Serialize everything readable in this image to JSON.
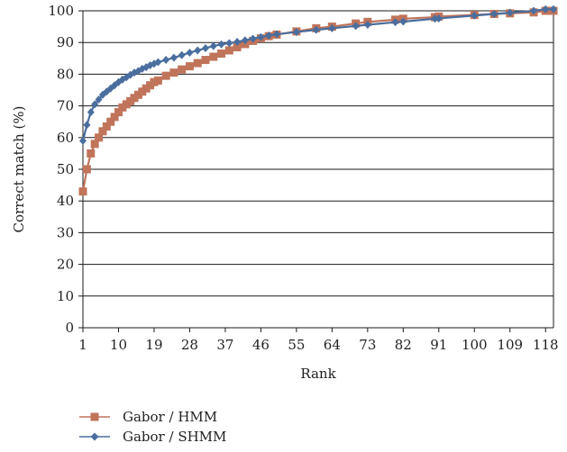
{
  "chart_data": {
    "type": "line",
    "title": "",
    "xlabel": "Rank",
    "ylabel": "Correct match (%)",
    "ylim": [
      0,
      100
    ],
    "yticks": [
      0,
      10,
      20,
      30,
      40,
      50,
      60,
      70,
      80,
      90,
      100
    ],
    "xlim": [
      1,
      120
    ],
    "xticks": [
      1,
      10,
      19,
      28,
      37,
      46,
      55,
      64,
      73,
      82,
      91,
      100,
      109,
      118
    ],
    "grid": "horizontal",
    "legend_position": "bottom-left",
    "series": [
      {
        "name": "Gabor / HMM",
        "color": "#c0745a",
        "marker": "square",
        "x": [
          1,
          2,
          3,
          4,
          5,
          6,
          7,
          8,
          9,
          10,
          11,
          12,
          13,
          14,
          15,
          16,
          17,
          18,
          19,
          20,
          22,
          24,
          26,
          28,
          30,
          32,
          34,
          36,
          38,
          40,
          42,
          44,
          46,
          48,
          50,
          55,
          60,
          64,
          70,
          73,
          80,
          82,
          90,
          91,
          100,
          105,
          109,
          115,
          118,
          120
        ],
        "values": [
          43,
          50,
          55,
          58,
          60,
          62,
          63.5,
          65,
          66.5,
          68,
          69.5,
          70.5,
          71.5,
          72.5,
          73.5,
          74.5,
          75.5,
          76.5,
          77.5,
          78,
          79.5,
          80.5,
          81.5,
          82.5,
          83.5,
          84.5,
          85.5,
          86.5,
          87.5,
          88.5,
          89.5,
          90.5,
          91.3,
          92,
          92.5,
          93.5,
          94.5,
          95,
          96,
          96.5,
          97.2,
          97.5,
          98,
          98.2,
          98.7,
          99,
          99.2,
          99.5,
          100,
          100
        ]
      },
      {
        "name": "Gabor / SHMM",
        "color": "#4a6e9e",
        "marker": "diamond",
        "x": [
          1,
          2,
          3,
          4,
          5,
          6,
          7,
          8,
          9,
          10,
          11,
          12,
          13,
          14,
          15,
          16,
          17,
          18,
          19,
          20,
          22,
          24,
          26,
          28,
          30,
          32,
          34,
          36,
          38,
          40,
          42,
          44,
          46,
          48,
          50,
          55,
          60,
          64,
          70,
          73,
          80,
          82,
          90,
          91,
          100,
          105,
          109,
          115,
          118,
          120
        ],
        "values": [
          59,
          64,
          68,
          70.5,
          72,
          73.5,
          74.5,
          75.5,
          76.5,
          77.5,
          78.3,
          79,
          79.8,
          80.5,
          81,
          81.7,
          82.2,
          82.8,
          83.3,
          83.8,
          84.5,
          85.2,
          86,
          86.8,
          87.5,
          88.2,
          88.9,
          89.4,
          89.8,
          90.2,
          90.7,
          91.2,
          91.7,
          92.2,
          92.6,
          93.3,
          94,
          94.5,
          95.2,
          95.6,
          96.4,
          96.6,
          97.5,
          97.6,
          98.5,
          99,
          99.4,
          100,
          100.5,
          100.5
        ]
      }
    ]
  }
}
